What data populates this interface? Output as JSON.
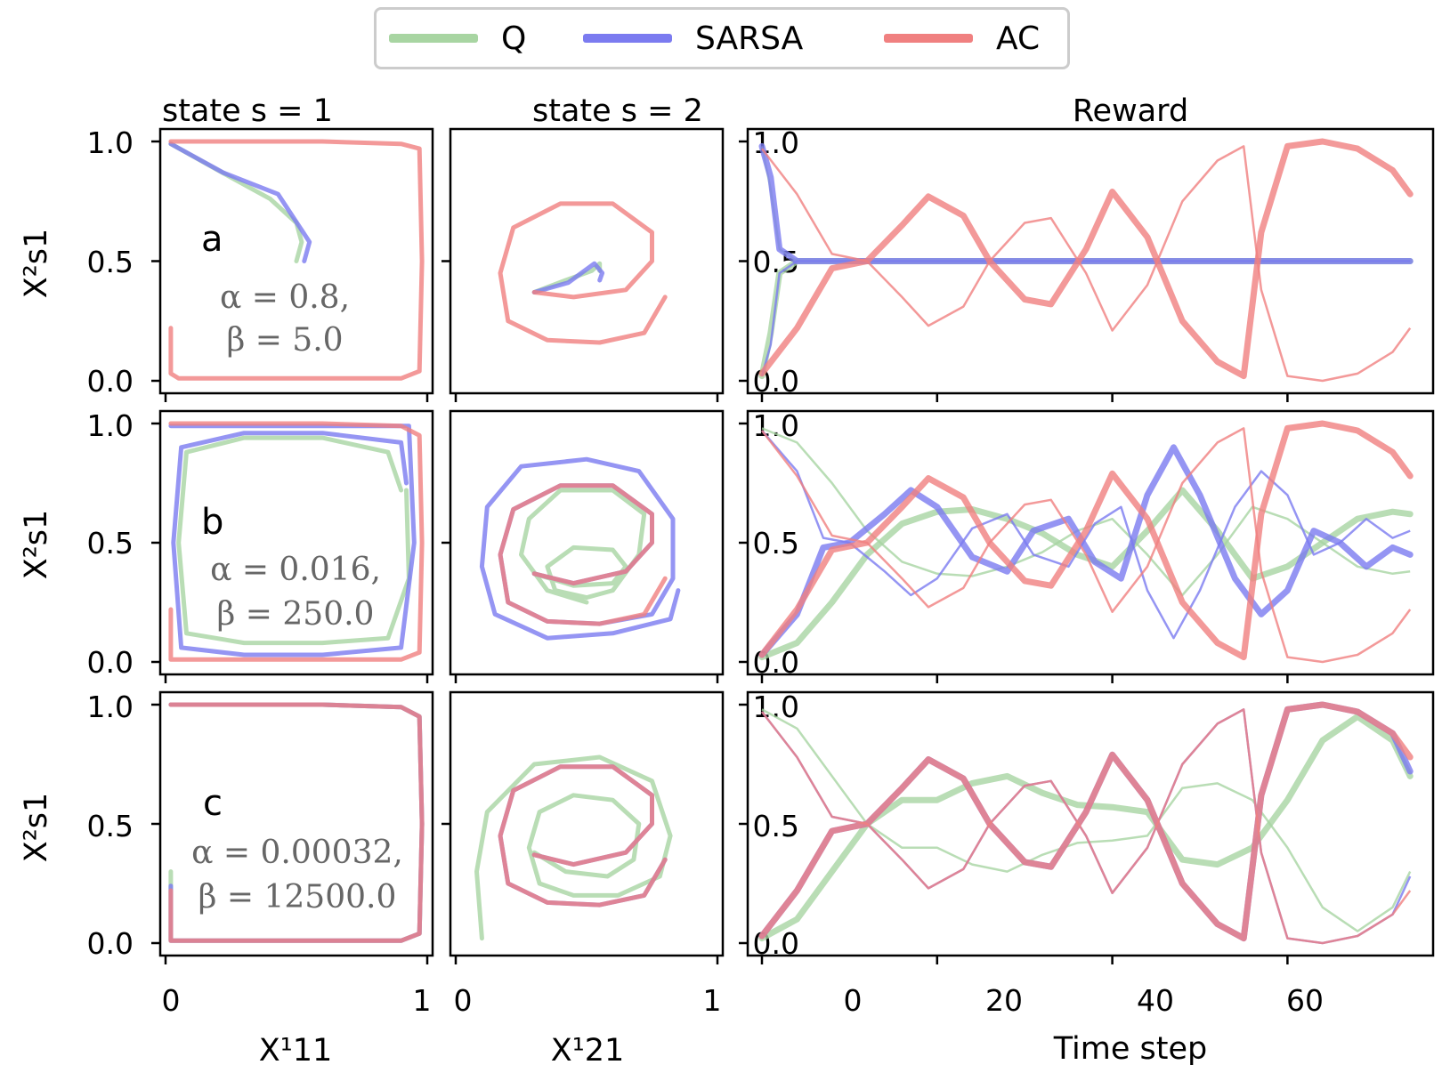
{
  "legend": {
    "items": [
      {
        "label": "Q",
        "color": "#a8d5a2"
      },
      {
        "label": "SARSA",
        "color": "#7b7bf0"
      },
      {
        "label": "AC",
        "color": "#f08080"
      }
    ]
  },
  "column_titles": [
    "state s = 1",
    "state s = 2",
    "Reward"
  ],
  "axis_labels": {
    "row_ylabel": "X²s1",
    "col1_xlabel": "X¹11",
    "col2_xlabel": "X¹21",
    "reward_xlabel": "Time step"
  },
  "rows": [
    {
      "letter": "a",
      "alpha_text": "α = 0.8,",
      "beta_text": "β = 5.0"
    },
    {
      "letter": "b",
      "alpha_text": "α = 0.016,",
      "beta_text": "β = 250.0"
    },
    {
      "letter": "c",
      "alpha_text": "α = 0.00032,",
      "beta_text": "β = 12500.0"
    }
  ],
  "ticks": {
    "phase_x": [
      "0",
      "1"
    ],
    "phase_y": [
      "0.0",
      "0.5",
      "1.0"
    ],
    "reward_x": [
      "0",
      "20",
      "40",
      "60"
    ],
    "reward_y": [
      "0.0",
      "0.5",
      "1.0"
    ]
  },
  "chart_data": [
    {
      "type": "line",
      "panel": "a-state1",
      "xlim": [
        0,
        1
      ],
      "ylim": [
        0,
        1
      ],
      "series": [
        {
          "name": "Q",
          "x": [
            0.02,
            0.2,
            0.4,
            0.5,
            0.52,
            0.5
          ],
          "y": [
            0.99,
            0.88,
            0.76,
            0.66,
            0.58,
            0.5
          ]
        },
        {
          "name": "SARSA",
          "x": [
            0.02,
            0.22,
            0.43,
            0.55,
            0.53
          ],
          "y": [
            0.99,
            0.87,
            0.78,
            0.58,
            0.5
          ]
        },
        {
          "name": "AC",
          "x": [
            0.02,
            0.3,
            0.6,
            0.9,
            0.97,
            0.98,
            0.97,
            0.9,
            0.6,
            0.3,
            0.05,
            0.02,
            0.02
          ],
          "y": [
            1.0,
            1.0,
            1.0,
            0.99,
            0.97,
            0.5,
            0.04,
            0.01,
            0.01,
            0.01,
            0.01,
            0.03,
            0.22
          ]
        }
      ]
    },
    {
      "type": "line",
      "panel": "a-state2",
      "xlim": [
        0,
        1
      ],
      "ylim": [
        0,
        1
      ],
      "series": [
        {
          "name": "Q",
          "x": [
            0.3,
            0.42,
            0.52,
            0.55,
            0.55
          ],
          "y": [
            0.37,
            0.42,
            0.46,
            0.49,
            0.46
          ]
        },
        {
          "name": "SARSA",
          "x": [
            0.3,
            0.43,
            0.53,
            0.56,
            0.55
          ],
          "y": [
            0.37,
            0.41,
            0.49,
            0.45,
            0.42
          ]
        },
        {
          "name": "AC",
          "x": [
            0.3,
            0.45,
            0.65,
            0.75,
            0.75,
            0.6,
            0.4,
            0.22,
            0.17,
            0.2,
            0.35,
            0.55,
            0.72,
            0.8
          ],
          "y": [
            0.37,
            0.35,
            0.38,
            0.5,
            0.62,
            0.74,
            0.74,
            0.64,
            0.45,
            0.25,
            0.17,
            0.16,
            0.2,
            0.35
          ]
        }
      ]
    },
    {
      "type": "line",
      "panel": "a-reward",
      "xlim": [
        0,
        75
      ],
      "ylim": [
        0,
        1
      ],
      "series": [
        {
          "name": "Q",
          "x": [
            0,
            1,
            2,
            4,
            74
          ],
          "y": [
            0.02,
            0.2,
            0.45,
            0.5,
            0.5
          ]
        },
        {
          "name": "SARSA",
          "x": [
            0,
            1,
            2,
            4,
            74
          ],
          "y": [
            0.98,
            0.85,
            0.55,
            0.5,
            0.5
          ]
        },
        {
          "name": "AC",
          "x": [
            0,
            4,
            8,
            12,
            16,
            19,
            23,
            26,
            30,
            33,
            37,
            40,
            44,
            48,
            52,
            55,
            57,
            60,
            64,
            68,
            72,
            74
          ],
          "y": [
            0.03,
            0.22,
            0.47,
            0.5,
            0.65,
            0.77,
            0.69,
            0.5,
            0.34,
            0.32,
            0.55,
            0.79,
            0.6,
            0.25,
            0.08,
            0.02,
            0.62,
            0.98,
            1.0,
            0.97,
            0.88,
            0.78
          ]
        }
      ]
    },
    {
      "type": "line",
      "panel": "b-state1",
      "xlim": [
        0,
        1
      ],
      "ylim": [
        0,
        1
      ],
      "series": [
        {
          "name": "Q",
          "x": [
            0.9,
            0.85,
            0.6,
            0.3,
            0.08,
            0.05,
            0.08,
            0.3,
            0.6,
            0.85,
            0.93,
            0.92
          ],
          "y": [
            0.72,
            0.88,
            0.94,
            0.94,
            0.88,
            0.5,
            0.12,
            0.08,
            0.08,
            0.1,
            0.35,
            0.72
          ]
        },
        {
          "name": "SARSA",
          "x": [
            0.92,
            0.9,
            0.6,
            0.3,
            0.06,
            0.03,
            0.06,
            0.3,
            0.6,
            0.9,
            0.95,
            0.93,
            0.6,
            0.3,
            0.02
          ],
          "y": [
            0.75,
            0.92,
            0.96,
            0.96,
            0.9,
            0.5,
            0.06,
            0.03,
            0.03,
            0.06,
            0.5,
            0.99,
            0.99,
            0.99,
            0.99
          ]
        },
        {
          "name": "AC",
          "x": [
            0.02,
            0.3,
            0.6,
            0.9,
            0.97,
            0.98,
            0.97,
            0.9,
            0.6,
            0.3,
            0.02,
            0.02
          ],
          "y": [
            1.0,
            1.0,
            1.0,
            0.99,
            0.95,
            0.5,
            0.04,
            0.01,
            0.01,
            0.01,
            0.01,
            0.22
          ]
        }
      ]
    },
    {
      "type": "line",
      "panel": "b-state2",
      "xlim": [
        0,
        1
      ],
      "ylim": [
        0,
        1
      ],
      "series": [
        {
          "name": "Q",
          "x": [
            0.3,
            0.45,
            0.6,
            0.65,
            0.6,
            0.45,
            0.35,
            0.38,
            0.5,
            0.6,
            0.7,
            0.72,
            0.6,
            0.4,
            0.28,
            0.25,
            0.35,
            0.5
          ],
          "y": [
            0.37,
            0.32,
            0.33,
            0.4,
            0.47,
            0.48,
            0.4,
            0.3,
            0.27,
            0.3,
            0.45,
            0.62,
            0.72,
            0.72,
            0.6,
            0.45,
            0.3,
            0.25
          ]
        },
        {
          "name": "SARSA",
          "x": [
            0.3,
            0.45,
            0.65,
            0.75,
            0.75,
            0.6,
            0.4,
            0.22,
            0.17,
            0.2,
            0.35,
            0.55,
            0.75,
            0.83,
            0.83,
            0.7,
            0.5,
            0.25,
            0.12,
            0.1,
            0.15,
            0.35,
            0.6,
            0.82,
            0.85
          ],
          "y": [
            0.37,
            0.33,
            0.38,
            0.5,
            0.62,
            0.74,
            0.74,
            0.64,
            0.45,
            0.25,
            0.17,
            0.16,
            0.2,
            0.35,
            0.6,
            0.8,
            0.85,
            0.82,
            0.65,
            0.4,
            0.2,
            0.1,
            0.12,
            0.18,
            0.3
          ]
        },
        {
          "name": "AC",
          "x": [
            0.3,
            0.45,
            0.65,
            0.75,
            0.75,
            0.6,
            0.4,
            0.22,
            0.17,
            0.2,
            0.35,
            0.55,
            0.72,
            0.8
          ],
          "y": [
            0.37,
            0.33,
            0.38,
            0.5,
            0.62,
            0.74,
            0.74,
            0.64,
            0.45,
            0.25,
            0.17,
            0.16,
            0.2,
            0.35
          ]
        }
      ]
    },
    {
      "type": "line",
      "panel": "b-reward",
      "xlim": [
        0,
        75
      ],
      "ylim": [
        0,
        1
      ],
      "series": [
        {
          "name": "Q",
          "x": [
            0,
            4,
            8,
            12,
            16,
            20,
            24,
            28,
            32,
            36,
            40,
            44,
            48,
            52,
            56,
            60,
            64,
            68,
            72,
            74
          ],
          "y": [
            0.02,
            0.08,
            0.25,
            0.45,
            0.58,
            0.63,
            0.64,
            0.6,
            0.54,
            0.45,
            0.4,
            0.55,
            0.72,
            0.55,
            0.35,
            0.4,
            0.5,
            0.6,
            0.63,
            0.62
          ]
        },
        {
          "name": "SARSA",
          "x": [
            0,
            4,
            7,
            10,
            14,
            17,
            20,
            24,
            28,
            31,
            35,
            38,
            41,
            44,
            47,
            50,
            54,
            57,
            60,
            63,
            66,
            69,
            72,
            74
          ],
          "y": [
            0.03,
            0.2,
            0.48,
            0.5,
            0.62,
            0.72,
            0.65,
            0.44,
            0.38,
            0.55,
            0.6,
            0.42,
            0.35,
            0.7,
            0.9,
            0.7,
            0.35,
            0.2,
            0.3,
            0.55,
            0.5,
            0.4,
            0.48,
            0.45
          ]
        },
        {
          "name": "AC",
          "x": [
            0,
            4,
            8,
            12,
            16,
            19,
            23,
            26,
            30,
            33,
            37,
            40,
            44,
            48,
            52,
            55,
            57,
            60,
            64,
            68,
            72,
            74
          ],
          "y": [
            0.03,
            0.22,
            0.47,
            0.5,
            0.65,
            0.77,
            0.69,
            0.5,
            0.34,
            0.32,
            0.55,
            0.79,
            0.6,
            0.25,
            0.08,
            0.02,
            0.62,
            0.98,
            1.0,
            0.97,
            0.88,
            0.78
          ]
        }
      ]
    },
    {
      "type": "line",
      "panel": "c-state1",
      "xlim": [
        0,
        1
      ],
      "ylim": [
        0,
        1
      ],
      "series": [
        {
          "name": "Q",
          "x": [
            0.02,
            0.3,
            0.6,
            0.9,
            0.97,
            0.98,
            0.97,
            0.9,
            0.6,
            0.3,
            0.02,
            0.02
          ],
          "y": [
            1.0,
            1.0,
            1.0,
            0.99,
            0.95,
            0.5,
            0.04,
            0.01,
            0.01,
            0.01,
            0.01,
            0.3
          ]
        },
        {
          "name": "SARSA",
          "x": [
            0.02,
            0.3,
            0.6,
            0.9,
            0.97,
            0.98,
            0.97,
            0.9,
            0.6,
            0.3,
            0.02,
            0.02
          ],
          "y": [
            1.0,
            1.0,
            1.0,
            0.99,
            0.95,
            0.5,
            0.04,
            0.01,
            0.01,
            0.01,
            0.01,
            0.24
          ]
        },
        {
          "name": "AC",
          "x": [
            0.02,
            0.3,
            0.6,
            0.9,
            0.97,
            0.98,
            0.97,
            0.9,
            0.6,
            0.3,
            0.02,
            0.02
          ],
          "y": [
            1.0,
            1.0,
            1.0,
            0.99,
            0.95,
            0.5,
            0.04,
            0.01,
            0.01,
            0.01,
            0.01,
            0.22
          ]
        }
      ]
    },
    {
      "type": "line",
      "panel": "c-state2",
      "xlim": [
        0,
        1
      ],
      "ylim": [
        0,
        1
      ],
      "series": [
        {
          "name": "Q",
          "x": [
            0.3,
            0.42,
            0.58,
            0.68,
            0.7,
            0.6,
            0.45,
            0.32,
            0.28,
            0.32,
            0.45,
            0.62,
            0.78,
            0.82,
            0.75,
            0.55,
            0.3,
            0.12,
            0.08,
            0.1
          ],
          "y": [
            0.38,
            0.3,
            0.28,
            0.35,
            0.5,
            0.6,
            0.62,
            0.55,
            0.4,
            0.25,
            0.2,
            0.2,
            0.28,
            0.45,
            0.68,
            0.78,
            0.75,
            0.55,
            0.3,
            0.02
          ]
        },
        {
          "name": "SARSA",
          "x": [
            0.3,
            0.45,
            0.65,
            0.75,
            0.75,
            0.6,
            0.4,
            0.22,
            0.17,
            0.2,
            0.35,
            0.55,
            0.72,
            0.8
          ],
          "y": [
            0.37,
            0.33,
            0.38,
            0.5,
            0.62,
            0.74,
            0.74,
            0.64,
            0.45,
            0.25,
            0.17,
            0.16,
            0.2,
            0.35
          ]
        },
        {
          "name": "AC",
          "x": [
            0.3,
            0.45,
            0.65,
            0.75,
            0.75,
            0.6,
            0.4,
            0.22,
            0.17,
            0.2,
            0.35,
            0.55,
            0.72,
            0.8
          ],
          "y": [
            0.37,
            0.33,
            0.38,
            0.5,
            0.62,
            0.74,
            0.74,
            0.64,
            0.45,
            0.25,
            0.17,
            0.16,
            0.2,
            0.35
          ]
        }
      ]
    },
    {
      "type": "line",
      "panel": "c-reward",
      "xlim": [
        0,
        75
      ],
      "ylim": [
        0,
        1
      ],
      "series": [
        {
          "name": "Q",
          "x": [
            0,
            4,
            8,
            12,
            16,
            20,
            24,
            28,
            32,
            36,
            40,
            44,
            48,
            52,
            56,
            60,
            64,
            68,
            72,
            74
          ],
          "y": [
            0.02,
            0.1,
            0.3,
            0.5,
            0.6,
            0.6,
            0.67,
            0.7,
            0.63,
            0.58,
            0.57,
            0.55,
            0.35,
            0.33,
            0.4,
            0.6,
            0.85,
            0.95,
            0.85,
            0.7
          ]
        },
        {
          "name": "SARSA",
          "x": [
            0,
            4,
            8,
            12,
            16,
            19,
            23,
            26,
            30,
            33,
            37,
            40,
            44,
            48,
            52,
            55,
            57,
            60,
            64,
            68,
            72,
            74
          ],
          "y": [
            0.03,
            0.22,
            0.47,
            0.5,
            0.65,
            0.77,
            0.69,
            0.5,
            0.34,
            0.32,
            0.55,
            0.79,
            0.6,
            0.25,
            0.08,
            0.02,
            0.62,
            0.98,
            1.0,
            0.97,
            0.88,
            0.72
          ]
        },
        {
          "name": "AC",
          "x": [
            0,
            4,
            8,
            12,
            16,
            19,
            23,
            26,
            30,
            33,
            37,
            40,
            44,
            48,
            52,
            55,
            57,
            60,
            64,
            68,
            72,
            74
          ],
          "y": [
            0.03,
            0.22,
            0.47,
            0.5,
            0.65,
            0.77,
            0.69,
            0.5,
            0.34,
            0.32,
            0.55,
            0.79,
            0.6,
            0.25,
            0.08,
            0.02,
            0.62,
            0.98,
            1.0,
            0.97,
            0.88,
            0.78
          ]
        }
      ]
    }
  ]
}
